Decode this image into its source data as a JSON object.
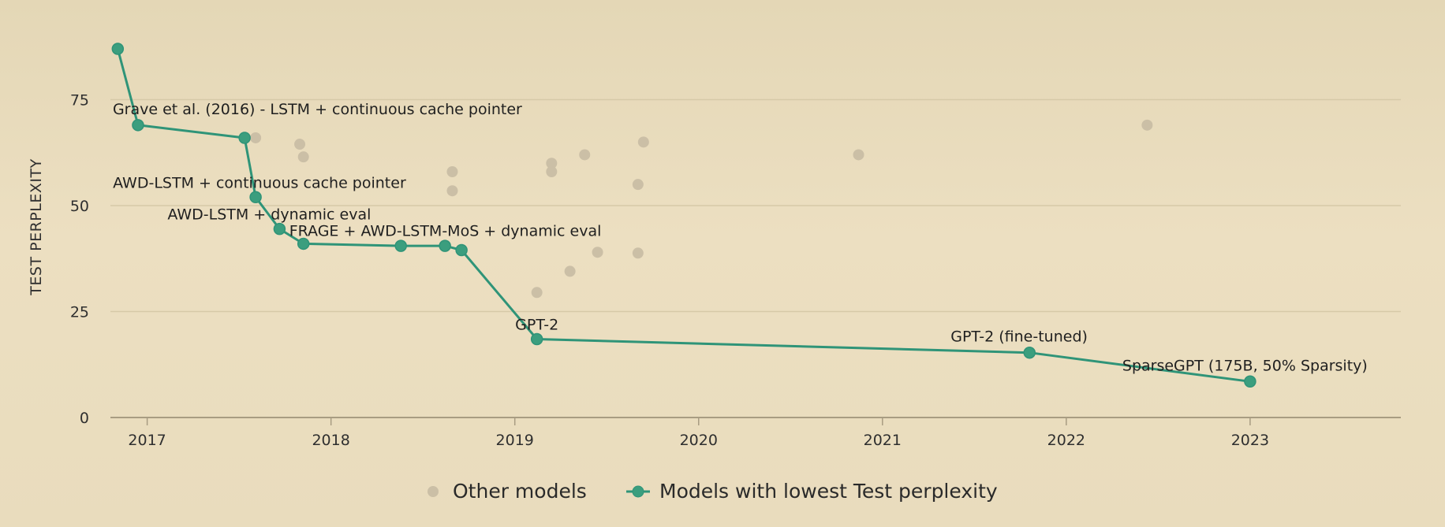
{
  "colors": {
    "frontier": "#2f9478",
    "frontier_fill": "#3b9e7e",
    "other": "#cbbfa6",
    "grid": "#d6c9a8",
    "axis": "#a89c82"
  },
  "legend": {
    "other_label": "Other models",
    "frontier_label": "Models with lowest Test perplexity"
  },
  "chart_data": {
    "type": "scatter",
    "title": "",
    "ylabel": "TEST PERPLEXITY",
    "xlabel": "",
    "xlim": [
      2016.8,
      2023.82
    ],
    "ylim": [
      0,
      87
    ],
    "x_ticks": [
      2017,
      2018,
      2019,
      2020,
      2021,
      2022,
      2023
    ],
    "y_ticks": [
      0,
      25,
      50,
      75
    ],
    "grid": "horizontal",
    "legend_position": "bottom-center",
    "series": [
      {
        "name": "Other models",
        "style": "points",
        "points": [
          {
            "x": 2017.59,
            "y": 66.0
          },
          {
            "x": 2017.83,
            "y": 64.5
          },
          {
            "x": 2017.85,
            "y": 61.5
          },
          {
            "x": 2018.66,
            "y": 58.0
          },
          {
            "x": 2018.66,
            "y": 53.5
          },
          {
            "x": 2019.12,
            "y": 29.5
          },
          {
            "x": 2019.2,
            "y": 60.0
          },
          {
            "x": 2019.2,
            "y": 58.0
          },
          {
            "x": 2019.3,
            "y": 34.5
          },
          {
            "x": 2019.38,
            "y": 62.0
          },
          {
            "x": 2019.45,
            "y": 39.0
          },
          {
            "x": 2019.67,
            "y": 55.0
          },
          {
            "x": 2019.67,
            "y": 38.8
          },
          {
            "x": 2019.7,
            "y": 65.0
          },
          {
            "x": 2020.87,
            "y": 62.0
          },
          {
            "x": 2022.44,
            "y": 69.0
          }
        ]
      },
      {
        "name": "Models with lowest Test perplexity",
        "style": "line+points",
        "points": [
          {
            "x": 2016.84,
            "y": 87.0,
            "label": ""
          },
          {
            "x": 2016.95,
            "y": 69.0,
            "label": "Grave et al. (2016) - LSTM + continuous cache pointer"
          },
          {
            "x": 2017.53,
            "y": 66.0,
            "label": ""
          },
          {
            "x": 2017.59,
            "y": 52.0,
            "label": "AWD-LSTM + continuous cache pointer"
          },
          {
            "x": 2017.72,
            "y": 44.5,
            "label": "AWD-LSTM + dynamic eval"
          },
          {
            "x": 2017.85,
            "y": 41.0,
            "label": "FRAGE + AWD-LSTM-MoS + dynamic eval"
          },
          {
            "x": 2018.38,
            "y": 40.5,
            "label": ""
          },
          {
            "x": 2018.62,
            "y": 40.5,
            "label": ""
          },
          {
            "x": 2018.71,
            "y": 39.5,
            "label": ""
          },
          {
            "x": 2019.12,
            "y": 18.5,
            "label": "GPT-2"
          },
          {
            "x": 2021.8,
            "y": 15.3,
            "label": "GPT-2 (fine-tuned)"
          },
          {
            "x": 2023.0,
            "y": 8.5,
            "label": "SparseGPT (175B, 50% Sparsity)"
          }
        ]
      }
    ]
  }
}
